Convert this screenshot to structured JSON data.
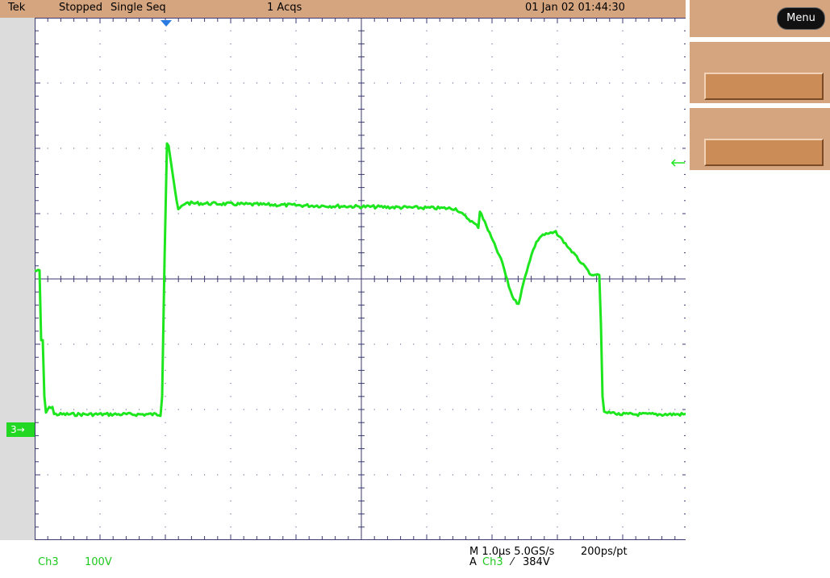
{
  "status_bar": {
    "brand": "Tek",
    "state": "Stopped",
    "mode": "Single Seq",
    "acquisitions": "1 Acqs",
    "datetime": "01 Jan 02 01:44:30"
  },
  "menu": {
    "label": "Menu"
  },
  "channel": {
    "marker": "3→",
    "name": "Ch3",
    "scale": "100V"
  },
  "timebase": {
    "horizontal": "M 1.0µs 5.0GS/s",
    "resolution": "200ps/pt",
    "trigger_prefix": "A",
    "trigger_channel": "Ch3",
    "trigger_slope": "⁄",
    "trigger_level": "384V"
  },
  "colors": {
    "trace": "#1ee61e",
    "panel": "#d5a57f",
    "grid": "#3a3a70"
  }
}
